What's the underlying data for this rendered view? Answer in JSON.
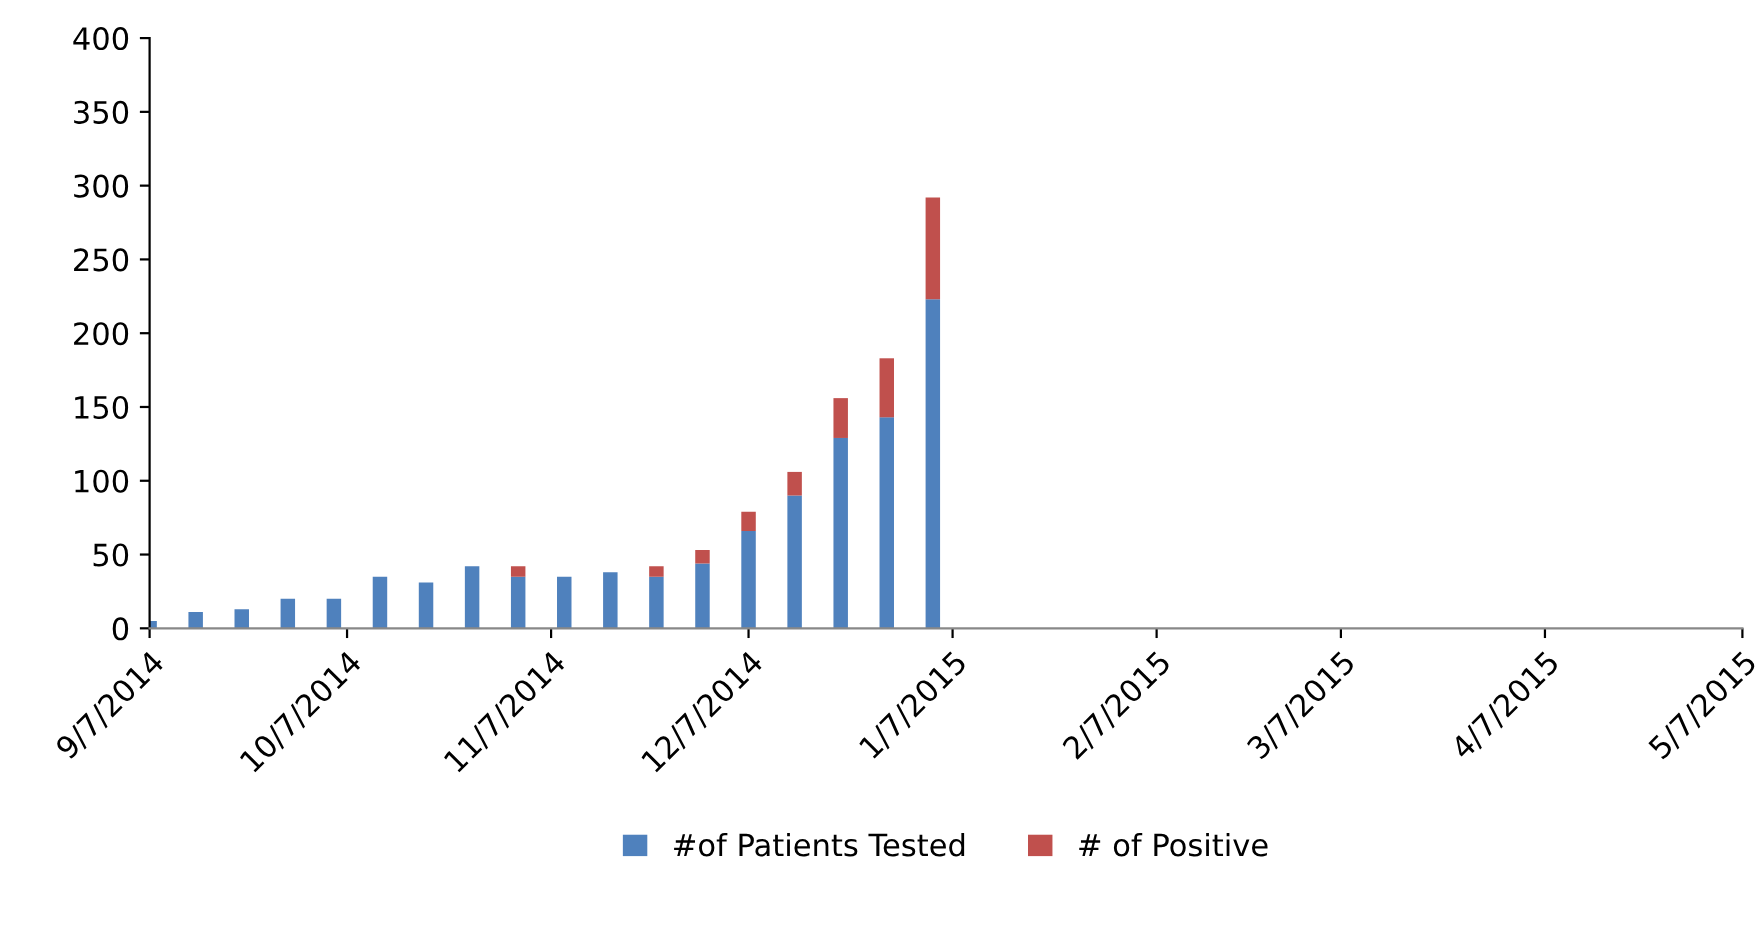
{
  "chart_data": {
    "type": "bar",
    "stacked": true,
    "x": [
      "2014-09-07",
      "2014-09-14",
      "2014-09-21",
      "2014-09-28",
      "2014-10-05",
      "2014-10-12",
      "2014-10-19",
      "2014-10-26",
      "2014-11-02",
      "2014-11-09",
      "2014-11-16",
      "2014-11-23",
      "2014-11-30",
      "2014-12-07",
      "2014-12-14",
      "2014-12-21",
      "2014-12-28",
      "2015-01-04"
    ],
    "series": [
      {
        "name": "#of Patients Tested",
        "color": "#4f81bd",
        "values": [
          5,
          11,
          13,
          20,
          20,
          35,
          31,
          42,
          35,
          35,
          38,
          35,
          44,
          66,
          90,
          129,
          143,
          223
        ]
      },
      {
        "name": "# of Positive",
        "color": "#c0504d",
        "values": [
          0,
          0,
          0,
          0,
          0,
          0,
          0,
          0,
          7,
          0,
          0,
          7,
          9,
          13,
          16,
          27,
          40,
          69
        ]
      }
    ],
    "xlim": [
      "2014-09-07",
      "2015-05-07"
    ],
    "xticks": [
      {
        "value": "2014-09-07",
        "label": "9/7/2014"
      },
      {
        "value": "2014-10-07",
        "label": "10/7/2014"
      },
      {
        "value": "2014-11-07",
        "label": "11/7/2014"
      },
      {
        "value": "2014-12-07",
        "label": "12/7/2014"
      },
      {
        "value": "2015-01-07",
        "label": "1/7/2015"
      },
      {
        "value": "2015-02-07",
        "label": "2/7/2015"
      },
      {
        "value": "2015-03-07",
        "label": "3/7/2015"
      },
      {
        "value": "2015-04-07",
        "label": "4/7/2015"
      },
      {
        "value": "2015-05-07",
        "label": "5/7/2015"
      }
    ],
    "ylim": [
      0,
      400
    ],
    "yticks": [
      0,
      50,
      100,
      150,
      200,
      250,
      300,
      350,
      400
    ],
    "grid": false,
    "legend": "bottom"
  }
}
